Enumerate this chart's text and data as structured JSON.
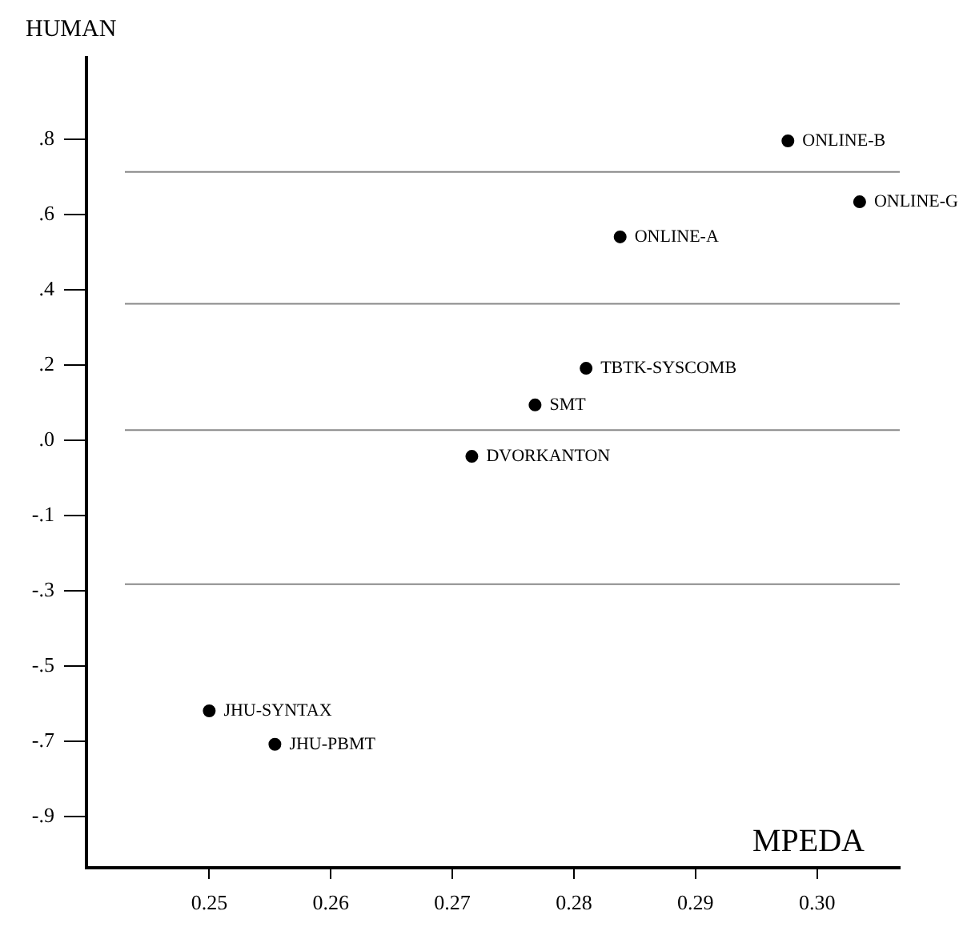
{
  "chart_data": {
    "type": "scatter",
    "xlabel": "MPEDA",
    "ylabel": "HUMAN",
    "marker": "circle",
    "grid": false,
    "legend": false,
    "xlim": [
      0.2399,
      0.3068
    ],
    "ylim": [
      -1.029,
      1.005
    ],
    "xticks": [
      {
        "value": 0.25,
        "label": "0.25"
      },
      {
        "value": 0.26,
        "label": "0.26"
      },
      {
        "value": 0.27,
        "label": "0.27"
      },
      {
        "value": 0.28,
        "label": "0.28"
      },
      {
        "value": 0.29,
        "label": "0.29"
      },
      {
        "value": 0.3,
        "label": "0.30"
      }
    ],
    "yticks": [
      {
        "value": -0.9,
        "label": "-.9"
      },
      {
        "value": -0.711,
        "label": "-.7"
      },
      {
        "value": -0.522,
        "label": "-.5"
      },
      {
        "value": -0.333,
        "label": "-.3"
      },
      {
        "value": -0.144,
        "label": "-.1"
      },
      {
        "value": 0.044,
        "label": ".0"
      },
      {
        "value": 0.233,
        "label": ".2"
      },
      {
        "value": 0.422,
        "label": ".4"
      },
      {
        "value": 0.611,
        "label": ".6"
      },
      {
        "value": 0.8,
        "label": ".8"
      }
    ],
    "ref_lines": [
      {
        "axis": "y",
        "value": 0.718,
        "color": "#888888"
      },
      {
        "axis": "y",
        "value": 0.387,
        "color": "#888888"
      },
      {
        "axis": "y",
        "value": 0.07,
        "color": "#888888"
      },
      {
        "axis": "y",
        "value": -0.317,
        "color": "#888888"
      }
    ],
    "series": [
      {
        "name": "ONLINE-B",
        "color": "#000000",
        "x": [
          0.2976
        ],
        "values": [
          0.796
        ]
      },
      {
        "name": "ONLINE-G",
        "color": "#000000",
        "x": [
          0.3035
        ],
        "values": [
          0.643
        ]
      },
      {
        "name": "ONLINE-A",
        "color": "#000000",
        "x": [
          0.2838
        ],
        "values": [
          0.555
        ]
      },
      {
        "name": "TBTK-SYSCOMB",
        "color": "#000000",
        "x": [
          0.281
        ],
        "values": [
          0.225
        ]
      },
      {
        "name": "SMT",
        "color": "#000000",
        "x": [
          0.2768
        ],
        "values": [
          0.133
        ]
      },
      {
        "name": "DVORKANTON",
        "color": "#000000",
        "x": [
          0.2716
        ],
        "values": [
          0.004
        ]
      },
      {
        "name": "JHU-SYNTAX",
        "color": "#000000",
        "x": [
          0.25
        ],
        "values": [
          -0.635
        ]
      },
      {
        "name": "JHU-PBMT",
        "color": "#000000",
        "x": [
          0.2554
        ],
        "values": [
          -0.719
        ]
      }
    ]
  }
}
